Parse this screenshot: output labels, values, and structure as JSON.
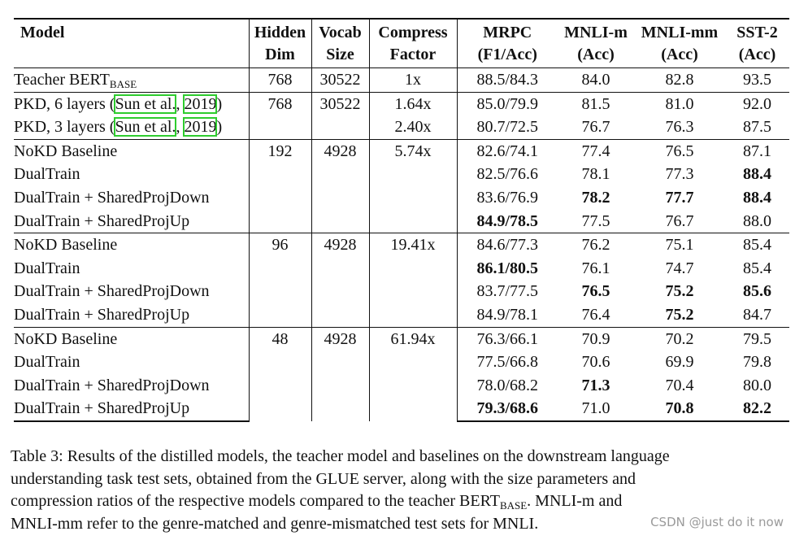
{
  "header": {
    "model": "Model",
    "hidden_1": "Hidden",
    "hidden_2": "Dim",
    "vocab_1": "Vocab",
    "vocab_2": "Size",
    "compress_1": "Compress",
    "compress_2": "Factor",
    "mrpc_1": "MRPC",
    "mrpc_2": "(F1/Acc)",
    "mnlim_1": "MNLI-m",
    "mnlim_2": "(Acc)",
    "mnlimm_1": "MNLI-mm",
    "mnlimm_2": "(Acc)",
    "sst_1": "SST-2",
    "sst_2": "(Acc)"
  },
  "teacher": {
    "name": "Teacher BERT",
    "sub": "BASE",
    "hidden": "768",
    "vocab": "30522",
    "compress": "1x",
    "mrpc": "88.5/84.3",
    "mnlim": "84.0",
    "mnlimm": "82.8",
    "sst": "93.5"
  },
  "pkd": {
    "hidden": "768",
    "vocab": "30522",
    "rows": [
      {
        "name": "PKD, 6 layers (",
        "cite_a": "Sun et al.",
        "sep": ", ",
        "cite_b": "2019",
        "close": ")",
        "compress": "1.64x",
        "mrpc": "85.0/79.9",
        "mnlim": "81.5",
        "mnlimm": "81.0",
        "sst": "92.0"
      },
      {
        "name": "PKD, 3 layers (",
        "cite_a": "Sun et al.",
        "sep": ", ",
        "cite_b": "2019",
        "close": ")",
        "compress": "2.40x",
        "mrpc": "80.7/72.5",
        "mnlim": "76.7",
        "mnlimm": "76.3",
        "sst": "87.5"
      }
    ]
  },
  "groups": [
    {
      "hidden": "192",
      "vocab": "4928",
      "compress": "5.74x",
      "rows": [
        {
          "name": "NoKD Baseline",
          "mrpc": "82.6/74.1",
          "mnlim": "77.4",
          "mnlimm": "76.5",
          "sst": "87.1"
        },
        {
          "name": "DualTrain",
          "mrpc": "82.5/76.6",
          "mnlim": "78.1",
          "mnlimm": "77.3",
          "sst": "88.4"
        },
        {
          "name": "DualTrain + SharedProjDown",
          "mrpc": "83.6/76.9",
          "mnlim": "78.2",
          "mnlimm": "77.7",
          "sst": "88.4"
        },
        {
          "name": "DualTrain + SharedProjUp",
          "mrpc": "84.9/78.5",
          "mnlim": "77.5",
          "mnlimm": "76.7",
          "sst": "88.0"
        }
      ]
    },
    {
      "hidden": "96",
      "vocab": "4928",
      "compress": "19.41x",
      "rows": [
        {
          "name": "NoKD Baseline",
          "mrpc": "84.6/77.3",
          "mnlim": "76.2",
          "mnlimm": "75.1",
          "sst": "85.4"
        },
        {
          "name": "DualTrain",
          "mrpc": "86.1/80.5",
          "mnlim": "76.1",
          "mnlimm": "74.7",
          "sst": "85.4"
        },
        {
          "name": "DualTrain + SharedProjDown",
          "mrpc": "83.7/77.5",
          "mnlim": "76.5",
          "mnlimm": "75.2",
          "sst": "85.6"
        },
        {
          "name": "DualTrain + SharedProjUp",
          "mrpc": "84.9/78.1",
          "mnlim": "76.4",
          "mnlimm": "75.2",
          "sst": "84.7"
        }
      ]
    },
    {
      "hidden": "48",
      "vocab": "4928",
      "compress": "61.94x",
      "rows": [
        {
          "name": "NoKD Baseline",
          "mrpc": "76.3/66.1",
          "mnlim": "70.9",
          "mnlimm": "70.2",
          "sst": "79.5"
        },
        {
          "name": "DualTrain",
          "mrpc": "77.5/66.8",
          "mnlim": "70.6",
          "mnlimm": "69.9",
          "sst": "79.8"
        },
        {
          "name": "DualTrain + SharedProjDown",
          "mrpc": "78.0/68.2",
          "mnlim": "71.3",
          "mnlimm": "70.4",
          "sst": "80.0"
        },
        {
          "name": "DualTrain + SharedProjUp",
          "mrpc": "79.3/68.6",
          "mnlim": "71.0",
          "mnlimm": "70.8",
          "sst": "82.2"
        }
      ]
    }
  ],
  "caption": {
    "line1": "Table 3: Results of the distilled models, the teacher model and baselines on the downstream language",
    "line2": "understanding task test sets, obtained from the GLUE server, along with the size parameters and",
    "line3_a": "compression ratios of the respective models compared to the teacher BERT",
    "line3_sub": "BASE",
    "line3_b": ".  MNLI-m and",
    "line4": "MNLI-mm refer to the genre-matched and genre-mismatched test sets for MNLI."
  },
  "watermark": "CSDN @just do it now"
}
